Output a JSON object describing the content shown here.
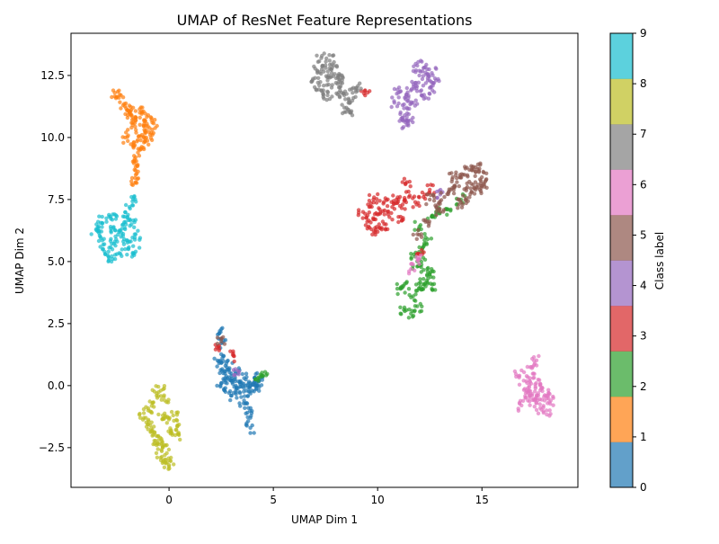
{
  "chart_data": {
    "type": "scatter",
    "title": "UMAP of ResNet Feature Representations",
    "xlabel": "UMAP Dim 1",
    "ylabel": "UMAP Dim 2",
    "xlim": [
      -4.7,
      19.6
    ],
    "ylim": [
      -4.1,
      14.2
    ],
    "xticks": [
      0,
      5,
      10,
      15
    ],
    "yticks": [
      -2.5,
      0.0,
      2.5,
      5.0,
      7.5,
      10.0,
      12.5
    ],
    "xtick_labels": [
      "0",
      "5",
      "10",
      "15"
    ],
    "ytick_labels": [
      "−2.5",
      "0.0",
      "2.5",
      "5.0",
      "7.5",
      "10.0",
      "12.5"
    ],
    "grid": false,
    "legend": "none",
    "colorbar": {
      "label": "Class label",
      "range": [
        0,
        9
      ],
      "ticks": [
        0,
        1,
        2,
        3,
        4,
        5,
        6,
        7,
        8,
        9
      ],
      "tick_labels": [
        "0",
        "1",
        "2",
        "3",
        "4",
        "5",
        "6",
        "7",
        "8",
        "9"
      ],
      "colors": [
        "#1f77b4",
        "#ff7f0e",
        "#2ca02c",
        "#d62728",
        "#9467bd",
        "#8c564b",
        "#e377c2",
        "#7f7f7f",
        "#bcbd22",
        "#17becf"
      ]
    },
    "point_alpha": 0.7,
    "clusters": [
      {
        "label": 0,
        "points": [
          [
            2.4,
            0.9
          ],
          [
            2.6,
            0.5
          ],
          [
            2.8,
            0.3
          ],
          [
            2.5,
            0.1
          ],
          [
            2.7,
            -0.1
          ],
          [
            3.0,
            0.2
          ],
          [
            3.2,
            0.0
          ],
          [
            3.4,
            -0.3
          ],
          [
            3.6,
            -0.6
          ],
          [
            3.8,
            -0.9
          ],
          [
            3.9,
            -1.3
          ],
          [
            3.9,
            -1.7
          ],
          [
            3.7,
            -0.2
          ],
          [
            3.9,
            0.1
          ],
          [
            4.1,
            0.3
          ],
          [
            4.2,
            0.0
          ],
          [
            4.0,
            -0.2
          ],
          [
            3.6,
            0.3
          ],
          [
            3.3,
            0.5
          ],
          [
            2.9,
            0.7
          ],
          [
            2.6,
            1.2
          ],
          [
            2.5,
            1.7
          ],
          [
            2.4,
            2.1
          ],
          [
            3.0,
            -0.4
          ],
          [
            4.3,
            0.2
          ],
          [
            3.5,
            0.1
          ],
          [
            2.7,
            0.8
          ]
        ]
      },
      {
        "label": 1,
        "points": [
          [
            -2.6,
            11.8
          ],
          [
            -2.4,
            11.6
          ],
          [
            -2.2,
            11.3
          ],
          [
            -2.0,
            11.1
          ],
          [
            -1.8,
            10.9
          ],
          [
            -1.6,
            10.8
          ],
          [
            -1.4,
            11.0
          ],
          [
            -1.2,
            10.7
          ],
          [
            -1.0,
            10.9
          ],
          [
            -0.8,
            10.6
          ],
          [
            -1.1,
            10.3
          ],
          [
            -1.3,
            10.1
          ],
          [
            -1.5,
            9.9
          ],
          [
            -1.7,
            9.7
          ],
          [
            -1.4,
            9.5
          ],
          [
            -1.6,
            9.2
          ],
          [
            -1.5,
            8.9
          ],
          [
            -1.6,
            8.5
          ],
          [
            -1.8,
            10.4
          ],
          [
            -2.1,
            10.0
          ],
          [
            -0.9,
            10.1
          ],
          [
            -1.2,
            9.8
          ],
          [
            -1.6,
            8.2
          ],
          [
            -1.9,
            11.0
          ]
        ]
      },
      {
        "label": 2,
        "points": [
          [
            11.3,
            3.0
          ],
          [
            11.6,
            2.9
          ],
          [
            11.9,
            3.2
          ],
          [
            11.7,
            3.6
          ],
          [
            12.0,
            3.9
          ],
          [
            12.2,
            4.3
          ],
          [
            12.4,
            4.6
          ],
          [
            12.1,
            5.0
          ],
          [
            12.3,
            4.0
          ],
          [
            12.6,
            3.9
          ],
          [
            12.5,
            4.5
          ],
          [
            11.9,
            4.8
          ],
          [
            11.8,
            5.2
          ],
          [
            12.2,
            5.6
          ],
          [
            12.4,
            5.9
          ],
          [
            12.0,
            6.4
          ],
          [
            11.3,
            4.1
          ],
          [
            11.1,
            3.9
          ],
          [
            4.3,
            0.3
          ],
          [
            4.5,
            0.4
          ],
          [
            13.5,
            7.1
          ],
          [
            12.8,
            7.0
          ],
          [
            14.0,
            7.5
          ],
          [
            12.6,
            6.8
          ]
        ]
      },
      {
        "label": 3,
        "points": [
          [
            9.3,
            7.0
          ],
          [
            9.5,
            6.6
          ],
          [
            9.7,
            6.3
          ],
          [
            9.9,
            6.7
          ],
          [
            10.1,
            7.1
          ],
          [
            10.3,
            7.4
          ],
          [
            10.5,
            6.9
          ],
          [
            10.7,
            7.2
          ],
          [
            10.9,
            7.5
          ],
          [
            11.2,
            7.3
          ],
          [
            11.5,
            7.6
          ],
          [
            11.8,
            7.4
          ],
          [
            12.2,
            7.6
          ],
          [
            9.6,
            7.2
          ],
          [
            10.0,
            6.2
          ],
          [
            10.4,
            6.5
          ],
          [
            9.8,
            7.5
          ],
          [
            11.0,
            6.8
          ],
          [
            12.0,
            5.3
          ],
          [
            11.4,
            8.2
          ],
          [
            2.4,
            1.5
          ],
          [
            3.1,
            1.2
          ],
          [
            9.4,
            11.9
          ],
          [
            12.5,
            7.9
          ]
        ]
      },
      {
        "label": 4,
        "points": [
          [
            11.0,
            11.8
          ],
          [
            11.3,
            11.6
          ],
          [
            11.6,
            11.9
          ],
          [
            11.8,
            12.2
          ],
          [
            12.0,
            12.5
          ],
          [
            12.2,
            12.8
          ],
          [
            12.4,
            12.4
          ],
          [
            12.6,
            12.6
          ],
          [
            12.1,
            11.9
          ],
          [
            11.7,
            11.4
          ],
          [
            11.4,
            11.2
          ],
          [
            11.3,
            10.9
          ],
          [
            11.4,
            10.5
          ],
          [
            11.2,
            10.8
          ],
          [
            12.5,
            12.0
          ],
          [
            12.3,
            11.6
          ],
          [
            11.9,
            12.9
          ],
          [
            10.8,
            11.4
          ],
          [
            11.6,
            10.7
          ],
          [
            12.8,
            12.3
          ],
          [
            3.3,
            0.6
          ],
          [
            13.0,
            7.7
          ]
        ]
      },
      {
        "label": 5,
        "points": [
          [
            12.9,
            7.3
          ],
          [
            13.2,
            7.6
          ],
          [
            13.5,
            7.9
          ],
          [
            13.8,
            8.2
          ],
          [
            14.1,
            8.5
          ],
          [
            14.4,
            8.7
          ],
          [
            14.7,
            8.6
          ],
          [
            15.0,
            8.4
          ],
          [
            14.8,
            8.1
          ],
          [
            14.5,
            7.8
          ],
          [
            14.2,
            7.5
          ],
          [
            13.9,
            7.3
          ],
          [
            14.3,
            8.0
          ],
          [
            14.9,
            7.9
          ],
          [
            15.1,
            8.1
          ],
          [
            13.6,
            8.4
          ],
          [
            13.0,
            7.0
          ],
          [
            12.5,
            7.5
          ],
          [
            12.3,
            6.6
          ],
          [
            11.9,
            6.1
          ],
          [
            2.5,
            1.9
          ],
          [
            14.7,
            8.8
          ]
        ]
      },
      {
        "label": 6,
        "points": [
          [
            16.8,
            0.4
          ],
          [
            17.0,
            0.2
          ],
          [
            17.2,
            -0.1
          ],
          [
            17.4,
            -0.4
          ],
          [
            17.6,
            -0.7
          ],
          [
            17.8,
            -0.9
          ],
          [
            18.0,
            -0.6
          ],
          [
            18.2,
            -0.3
          ],
          [
            17.9,
            -0.1
          ],
          [
            17.6,
            0.1
          ],
          [
            17.3,
            0.3
          ],
          [
            17.4,
            0.7
          ],
          [
            17.5,
            1.0
          ],
          [
            17.2,
            -0.6
          ],
          [
            16.9,
            -0.8
          ],
          [
            18.1,
            -1.0
          ],
          [
            17.7,
            -0.4
          ],
          [
            18.3,
            -0.6
          ],
          [
            12.0,
            5.1
          ],
          [
            11.6,
            4.7
          ],
          [
            17.1,
            -0.3
          ]
        ]
      },
      {
        "label": 7,
        "points": [
          [
            7.0,
            12.4
          ],
          [
            7.2,
            12.1
          ],
          [
            7.4,
            11.9
          ],
          [
            7.6,
            12.3
          ],
          [
            7.8,
            12.6
          ],
          [
            8.0,
            12.2
          ],
          [
            8.2,
            11.9
          ],
          [
            8.4,
            11.7
          ],
          [
            8.6,
            11.4
          ],
          [
            8.8,
            11.8
          ],
          [
            9.0,
            12.0
          ],
          [
            7.5,
            12.8
          ],
          [
            7.7,
            13.1
          ],
          [
            7.9,
            12.9
          ],
          [
            7.3,
            13.2
          ],
          [
            8.1,
            12.5
          ],
          [
            8.5,
            11.2
          ],
          [
            7.1,
            12.7
          ],
          [
            8.7,
            11.0
          ],
          [
            7.6,
            11.7
          ],
          [
            8.3,
            12.3
          ]
        ]
      },
      {
        "label": 8,
        "points": [
          [
            -0.6,
            -0.4
          ],
          [
            -0.8,
            -0.7
          ],
          [
            -1.0,
            -1.0
          ],
          [
            -1.2,
            -1.3
          ],
          [
            -0.9,
            -1.6
          ],
          [
            -0.7,
            -1.9
          ],
          [
            -0.5,
            -2.2
          ],
          [
            -0.3,
            -2.5
          ],
          [
            -0.2,
            -2.8
          ],
          [
            -0.1,
            -3.1
          ],
          [
            -0.3,
            -1.2
          ],
          [
            -0.1,
            -1.5
          ],
          [
            0.1,
            -1.8
          ],
          [
            0.3,
            -2.0
          ],
          [
            -0.4,
            -0.2
          ],
          [
            -0.2,
            -0.6
          ],
          [
            0.2,
            -1.2
          ],
          [
            -0.6,
            -2.4
          ],
          [
            -0.8,
            -1.8
          ],
          [
            0.0,
            -3.2
          ],
          [
            -0.4,
            -2.9
          ],
          [
            0.4,
            -1.6
          ]
        ]
      },
      {
        "label": 9,
        "points": [
          [
            -3.5,
            6.3
          ],
          [
            -3.3,
            6.0
          ],
          [
            -3.1,
            5.7
          ],
          [
            -2.9,
            5.4
          ],
          [
            -2.7,
            5.1
          ],
          [
            -2.5,
            5.3
          ],
          [
            -2.6,
            5.8
          ],
          [
            -2.4,
            6.2
          ],
          [
            -2.2,
            6.5
          ],
          [
            -2.0,
            6.8
          ],
          [
            -1.8,
            6.5
          ],
          [
            -1.6,
            6.1
          ],
          [
            -1.9,
            5.8
          ],
          [
            -2.1,
            5.5
          ],
          [
            -3.0,
            6.6
          ],
          [
            -2.7,
            6.9
          ],
          [
            -1.9,
            7.2
          ],
          [
            -1.8,
            7.6
          ],
          [
            -3.4,
            6.6
          ],
          [
            -2.3,
            6.0
          ],
          [
            -1.6,
            5.4
          ],
          [
            -2.8,
            6.4
          ]
        ]
      }
    ]
  }
}
